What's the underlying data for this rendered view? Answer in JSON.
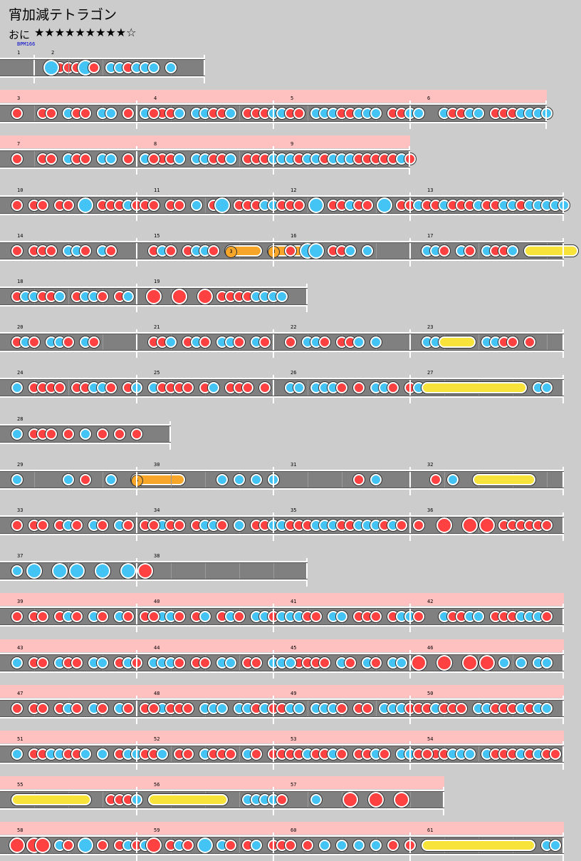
{
  "song_title": "宵加減テトラゴン",
  "difficulty_label": "おに",
  "stars": "★★★★★★★★★☆",
  "bpm_label": "BPM166",
  "colors": {
    "don": "#ff4141",
    "ka": "#44c4f4",
    "roll": "#f8e33b",
    "balloon": "#f7a62a",
    "gogo": "#ffc0c0"
  },
  "rows": [
    {
      "gogo": false,
      "measures": [
        {
          "num": "1",
          "w": 48,
          "bpm": true,
          "notes": "k,6,d;7,d;8,d;9,d"
        },
        {
          "num": "2",
          "w": 240,
          "notes": "k,1,bk;5,bk;6,d;8,k;9,k;10,d;11,k;12,k;13,k;15,k"
        }
      ]
    },
    {
      "gogo": true,
      "measures": [
        {
          "num": "3",
          "w": 192,
          "notes": "k,1,d;4,d;5,d;7,k;8,d;9,d;11,k;12,k;14,d;16,k;17,d;18,d;19,k"
        },
        {
          "num": "4",
          "w": 192,
          "notes": "k,1,d;3,d;4,k;6,k;7,k;8,d;9,d;10,k;12,d;13,d;14,d;15,k;16,k;17,k;18,d"
        },
        {
          "num": "5",
          "w": 192,
          "notes": "k,1,d;2,d;4,k;5,k;6,k;7,d;8,d;9,k;10,k;11,k;13,d;14,d;15,k;16,k"
        },
        {
          "num": "6",
          "w": 192,
          "notes": "k,3,k;4,d;5,d;6,k;7,k;9,d;10,d;11,d;12,k;13,k;14,k;15,k"
        }
      ]
    },
    {
      "gogo": true,
      "measures": [
        {
          "num": "7",
          "w": 192,
          "notes": "k,1,d;4,d;5,d;7,k;8,d;9,d;11,k;12,k;14,d;16,k;17,d;18,d;19,k"
        },
        {
          "num": "8",
          "w": 192,
          "notes": "k,1,d;3,d;4,k;6,k;7,k;8,d;9,d;10,k;12,d;13,d;14,d;15,k;16,k;17,k;18,d"
        },
        {
          "num": "9",
          "w": 192,
          "notes": "k,3,k;4,k;5,d;6,k;7,k;8,k;9,d;10,d;11,d;12,d;13,d;14,k;15,d"
        }
      ]
    },
    {
      "gogo": false,
      "measures": [
        {
          "num": "10",
          "w": 192,
          "notes": "k,1,d;3,d;4,d;6,d;7,d;9,bk;11,d;12,d;13,d;14,k;15,d;16,d;17,d"
        },
        {
          "num": "11",
          "w": 192,
          "notes": "k,1,d;3,d;4,d;6,k;8,d;9,bk;11,d;12,d;13,d;14,k;15,k;16,d;17,d;18,d"
        },
        {
          "num": "12",
          "w": 192,
          "notes": "k,1,d;2,d;4,bk;6,d;7,d;8,k;9,d;10,d;12,bk;14,d;15,d;16,k;17,k"
        },
        {
          "num": "13",
          "w": 216,
          "notes": "k,1,d;2,d;3,k;4,d;5,d;6,d;7,k;8,d;9,d;10,k;11,k;12,d;13,k;14,k;15,k;16,k;17,k"
        }
      ]
    },
    {
      "gogo": false,
      "measures": [
        {
          "num": "14",
          "w": 192,
          "notes": "k,1,d;3,d;4,d;5,d;7,k;8,k;9,d;11,k;12,d"
        },
        {
          "num": "15",
          "w": 192,
          "notes": "k,1,d;2,k;3,d;5,d;6,k;7,k;8,d;10,k;10,bal,13,3;15,bal,18,3"
        },
        {
          "num": "16",
          "w": 192,
          "notes": "k,1,d;3,bk;4,bk;6,d;7,d;8,k;10,k"
        },
        {
          "num": "17",
          "w": 216,
          "notes": "k,1,k;2,k;3,d;5,k;6,d;8,k;9,d;10,d;11,k;13,roll,18"
        }
      ]
    },
    {
      "gogo": false,
      "measures": [
        {
          "num": "18",
          "w": 192,
          "notes": "k,1,d;2,k;3,k;4,d;5,d;6,k;8,d;9,k;10,k;11,d;13,d;14,k"
        },
        {
          "num": "19",
          "w": 240,
          "notes": "k,1,bd;4,bd;7,bd;9,d;10,d;11,d;12,d;13,k;14,k;15,k;16,k"
        }
      ]
    },
    {
      "gogo": false,
      "measures": [
        {
          "num": "20",
          "w": 192,
          "notes": "k,1,d;2,k;3,d;5,k;6,k;7,d;9,k;10,d"
        },
        {
          "num": "21",
          "w": 192,
          "notes": "k,1,d;2,d;3,k;5,d;6,k;7,d;9,k;10,k;11,d;13,k;14,d"
        },
        {
          "num": "22",
          "w": 192,
          "notes": "k,1,d;3,k;4,k;5,d;7,d;8,d;9,k;11,k"
        },
        {
          "num": "23",
          "w": 216,
          "notes": "k,1,k;2,k;3,roll,6;8,k;9,k;10,d;11,d;13,d"
        }
      ]
    },
    {
      "gogo": false,
      "measures": [
        {
          "num": "24",
          "w": 192,
          "notes": "k,1,k;3,d;4,d;5,d;6,d;8,d;9,d;10,k;11,k;12,d;14,d;15,k"
        },
        {
          "num": "25",
          "w": 192,
          "notes": "k,1,k;2,d;3,d;4,d;5,d;7,d;8,k;10,d;11,d;12,d;14,d"
        },
        {
          "num": "26",
          "w": 192,
          "notes": "k,1,k;2,k;4,k;5,k;6,k;7,d;9,d;11,k;12,k;13,d;15,d;16,k"
        },
        {
          "num": "27",
          "w": 216,
          "notes": "k,1,roll,12;14,k;15,k"
        }
      ]
    },
    {
      "gogo": false,
      "measures": [
        {
          "num": "28",
          "w": 240,
          "notes": "k,1,k;3,d;4,d;5,d;7,d;9,k;11,d;13,d;15,d"
        }
      ]
    },
    {
      "gogo": false,
      "measures": [
        {
          "num": "29",
          "w": 192,
          "notes": "k,1,k;7,k;9,d;12,k;15,k;15,bal,20,5"
        },
        {
          "num": "30",
          "w": 192,
          "notes": "k,9,k;11,k;13,k;15,k"
        },
        {
          "num": "31",
          "w": 192,
          "notes": "k,9,d;11,k"
        },
        {
          "num": "32",
          "w": 216,
          "notes": "k,2,d;4,k;7,roll,13"
        }
      ]
    },
    {
      "gogo": false,
      "measures": [
        {
          "num": "33",
          "w": 192,
          "notes": "k,1,d;3,d;4,d;6,d;7,k;8,d;10,k;11,d;13,k;14,d;16,d;17,d;18,k"
        },
        {
          "num": "34",
          "w": 192,
          "notes": "k,1,d;3,d;4,d;6,d;7,k;8,k;9,d;11,k;13,d;14,d;15,k;16,k;17,k;18,d"
        },
        {
          "num": "35",
          "w": 192,
          "notes": "k,1,d;2,d;3,d;4,k;5,k;6,k;7,d;8,d;9,k;10,k;11,k;12,d;13,k;14,d;16,d"
        },
        {
          "num": "36",
          "w": 216,
          "notes": "k,3,bd;6,bd;8,bd;10,d;11,d;12,d;13,d;14,d;15,d"
        }
      ]
    },
    {
      "gogo": false,
      "measures": [
        {
          "num": "37",
          "w": 192,
          "notes": "k,1,k;3,bk;6,bk;8,bk;11,bk;14,bk;16,bd"
        },
        {
          "num": "38",
          "w": 240,
          "notes": ""
        }
      ]
    },
    {
      "gogo": true,
      "measures": [
        {
          "num": "39",
          "w": 192,
          "notes": "k,1,d;3,d;4,d;6,d;7,k;8,d;10,k;11,d;13,k;14,d;16,d;17,d;18,k"
        },
        {
          "num": "40",
          "w": 192,
          "notes": "k,1,d;3,k;4,d;6,d;7,k;9,d;10,k;11,d;13,k;14,k;15,d;16,k;17,k;18,d"
        },
        {
          "num": "41",
          "w": 192,
          "notes": "k,2,k;3,d;4,d;6,k;7,k;9,d;10,d;11,d;13,d;14,k;15,k;16,d"
        },
        {
          "num": "42",
          "w": 216,
          "notes": "k,3,k;4,d;5,d;6,k;7,k;9,d;10,d;11,d;12,k;13,k;14,k;15,d"
        }
      ]
    },
    {
      "gogo": true,
      "measures": [
        {
          "num": "43",
          "w": 192,
          "notes": "k,1,k;3,d;4,d;6,k;7,d;8,d;10,k;11,k;13,d;14,k;15,d;17,k;18,d"
        },
        {
          "num": "44",
          "w": 192,
          "notes": "k,1,k;2,k;3,k;4,d;6,d;7,d;9,k;10,k;12,d;13,d;15,k;16,k;17,k;18,d"
        },
        {
          "num": "45",
          "w": 192,
          "notes": "k,1,k;3,d;4,d;5,d;7,k;8,d;10,k;11,d;13,k;14,k;16,bd"
        },
        {
          "num": "46",
          "w": 216,
          "notes": "k,3,bd;6,bd;8,bd;10,k;12,k;14,k;15,k"
        }
      ]
    },
    {
      "gogo": true,
      "measures": [
        {
          "num": "47",
          "w": 192,
          "notes": "k,1,d;3,d;4,d;6,d;7,k;8,d;10,k;11,d;13,k;14,d;16,d;17,d;18,k"
        },
        {
          "num": "48",
          "w": 192,
          "notes": "k,1,d;3,d;4,d;5,d;7,k;8,k;9,k;11,k;12,k;13,d;14,k;15,d;16,d;17,k;18,d"
        },
        {
          "num": "49",
          "w": 192,
          "notes": "k,2,k;4,k;5,k;6,k;7,d;9,d;10,d;12,k;13,k;14,k;15,d;16,d;17,d"
        },
        {
          "num": "50",
          "w": 216,
          "notes": "k,2,k;3,d;4,d;5,d;7,k;8,k;9,d;10,d;11,d;12,k;13,d;14,k;15,k"
        }
      ]
    },
    {
      "gogo": true,
      "measures": [
        {
          "num": "51",
          "w": 192,
          "notes": "k,1,k;3,d;4,d;5,k;6,k;7,d;8,d;9,k;11,k;13,d;14,k;15,k;16,d;17,d;18,k"
        },
        {
          "num": "52",
          "w": 192,
          "notes": "k,1,d;2,k;4,d;5,d;7,k;8,d;9,d;10,d;12,k;13,d;15,d;16,d;17,k;18,d"
        },
        {
          "num": "53",
          "w": 192,
          "notes": "k,1,d;2,d;3,k;4,d;5,d;6,k;7,d;9,d;10,d;11,k;12,d;14,k;15,k;16,d;18,d"
        },
        {
          "num": "54",
          "w": 216,
          "notes": "k,1,d;3,d;4,k;5,k;6,k;8,k;9,d;10,d;11,d;12,k;13,d;14,k;15,d;16,d"
        }
      ]
    },
    {
      "gogo": true,
      "measures": [
        {
          "num": "55",
          "w": 192,
          "notes": "k,1,roll,9;12,d;13,d;14,d;15,k"
        },
        {
          "num": "56",
          "w": 192,
          "notes": "k,1,roll,9;12,k;13,k;14,k;15,k;16,d"
        },
        {
          "num": "57",
          "w": 240,
          "notes": "k,4,k;8,bd;11,bd;14,bd"
        }
      ]
    },
    {
      "gogo": true,
      "measures": [
        {
          "num": "58",
          "w": 192,
          "notes": "k,1,bd;3,bd;4,bd;6,k;7,d;9,bk;11,d;13,d;14,k;15,d;16,k"
        },
        {
          "num": "59",
          "w": 192,
          "notes": "k,1,bd;3,d;4,k;5,d;7,bk;9,k;10,d;12,d;13,k;15,d;16,d"
        },
        {
          "num": "60",
          "w": 192,
          "notes": "k,1,d;3,d;5,k;7,k;9,k;11,k;13,d;15,d"
        },
        {
          "num": "61",
          "w": 216,
          "notes": "k,1,roll,13;15,k;16,k"
        }
      ]
    }
  ]
}
